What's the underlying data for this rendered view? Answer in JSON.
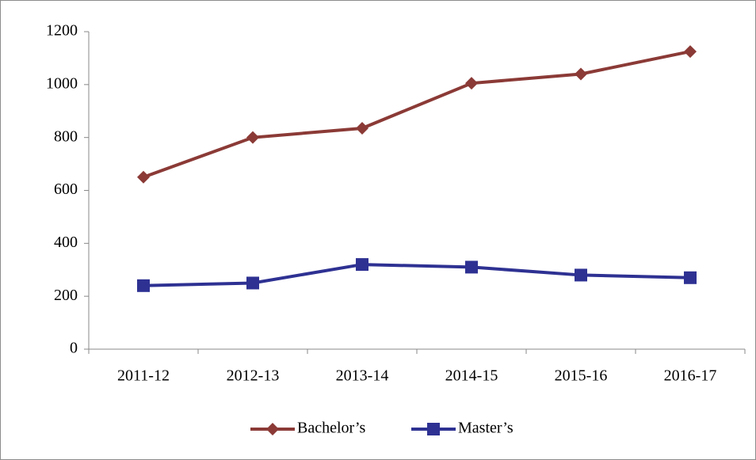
{
  "chart_data": {
    "type": "line",
    "categories": [
      "2011-12",
      "2012-13",
      "2013-14",
      "2014-15",
      "2015-16",
      "2016-17"
    ],
    "series": [
      {
        "name": "Bachelor’s",
        "color": "#8b3a36",
        "marker": "diamond",
        "values": [
          650,
          800,
          835,
          1005,
          1040,
          1125
        ]
      },
      {
        "name": "Master’s",
        "color": "#2e3192",
        "marker": "square",
        "values": [
          240,
          250,
          320,
          310,
          280,
          270
        ]
      }
    ],
    "ylim": [
      0,
      1200
    ],
    "yticks": [
      0,
      200,
      400,
      600,
      800,
      1000,
      1200
    ],
    "grid": false,
    "legend": "bottom"
  }
}
